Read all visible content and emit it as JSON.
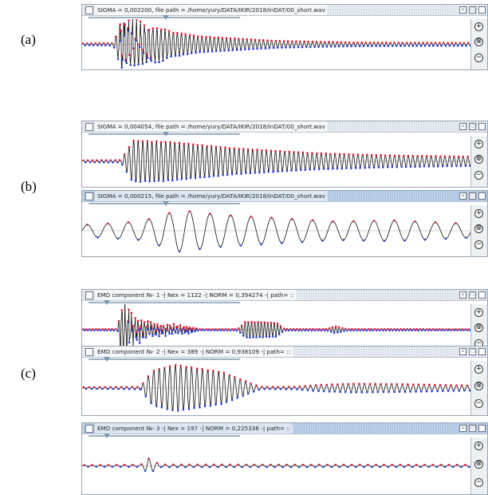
{
  "figure_labels": {
    "a": "(a)",
    "b": "(b)",
    "c": "(c)"
  },
  "panels": [
    {
      "title": "SIGMA = 0,002200, file path = /home/yury/DATA/IKIR/2018/inDAT/00_short.wav",
      "active": false,
      "slider": 0.5
    },
    {
      "title": "SIGMA = 0,004054, file path = /home/yury/DATA/IKIR/2018/inDAT/00_short.wav",
      "active": false,
      "slider": 0.5
    },
    {
      "title": "SIGMA = 0,000215, file path = /home/yury/DATA/IKIR/2018/inDAT/00_short.wav",
      "active": true,
      "slider": 0.5
    },
    {
      "title": "EMD component №- 1 -| Nex = 1122 -| NORM = 0,394274 -| path= ::",
      "active": false,
      "slider": 0.1
    },
    {
      "title": "EMD component №- 2 -| Nex = 389 -| NORM = 0,938109 -| path= ::",
      "active": false,
      "slider": 0.1
    },
    {
      "title": "EMD component №- 3 -| Nex = 197 -| NORM = 0,225336 -| path= ::",
      "active": true,
      "slider": 0.1
    }
  ],
  "colors": {
    "trace": "#111111",
    "maxima": "#e0203a",
    "minima": "#2b3fd6",
    "axis": "#d4d4d4"
  },
  "icons": {
    "window_buttons": [
      "restore-icon",
      "maximize-icon",
      "close-icon"
    ],
    "zoom": [
      "zoom-in-icon",
      "reset-zoom-icon",
      "zoom-out-icon"
    ]
  },
  "zoom_glyphs": {
    "in": "+",
    "reset": "⊗",
    "out": "−"
  }
}
